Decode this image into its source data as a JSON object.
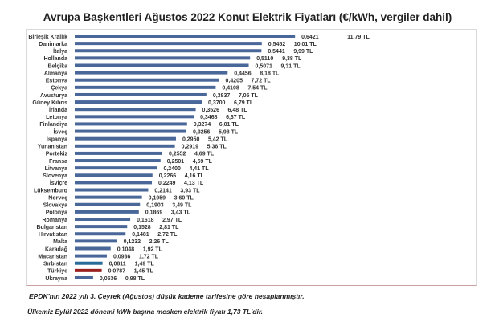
{
  "chart_data": {
    "type": "bar",
    "orientation": "horizontal",
    "title": "Avrupa Başkentleri Ağustos 2022 Konut Elektrik Fiyatları (€/kWh, vergiler dahil)",
    "categories": [
      "Birleşik Krallık",
      "Danimarka",
      "İtalya",
      "Hollanda",
      "Belçika",
      "Almanya",
      "Estonya",
      "Çekya",
      "Avusturya",
      "Güney Kıbrıs",
      "İrlanda",
      "Letonya",
      "Finlandiya",
      "İsveç",
      "İspanya",
      "Yunanistan",
      "Portekiz",
      "Fransa",
      "Litvanya",
      "Slovenya",
      "İsviçre",
      "Lüksemburg",
      "Norveç",
      "Slovakya",
      "Polonya",
      "Romanya",
      "Bulgaristan",
      "Hırvatistan",
      "Malta",
      "Karadağ",
      "Macaristan",
      "Sırbistan",
      "Türkiye",
      "Ukrayna"
    ],
    "values": [
      0.6421,
      0.5452,
      0.5441,
      0.511,
      0.5071,
      0.4456,
      0.4205,
      0.4108,
      0.3837,
      0.37,
      0.3526,
      0.3468,
      0.3274,
      0.3256,
      0.295,
      0.2919,
      0.2552,
      0.2501,
      0.24,
      0.2266,
      0.2249,
      0.2141,
      0.1959,
      0.1903,
      0.1869,
      0.1618,
      0.1528,
      0.1481,
      0.1232,
      0.1048,
      0.0936,
      0.0811,
      0.0787,
      0.0536
    ],
    "value_labels": [
      "0,6421",
      "0,5452",
      "0,5441",
      "0,5110",
      "0,5071",
      "0,4456",
      "0,4205",
      "0,4108",
      "0,3837",
      "0,3700",
      "0,3526",
      "0,3468",
      "0,3274",
      "0,3256",
      "0,2950",
      "0,2919",
      "0,2552",
      "0,2501",
      "0,2400",
      "0,2266",
      "0,2249",
      "0,2141",
      "0,1959",
      "0,1903",
      "0,1869",
      "0,1618",
      "0,1528",
      "0,1481",
      "0,1232",
      "0,1048",
      "0,0936",
      "0,0811",
      "0,0787",
      "0,0536"
    ],
    "tl_labels": [
      "11,79 TL",
      "10,01 TL",
      "9,99 TL",
      "9,38 TL",
      "9,31 TL",
      "8,18 TL",
      "7,72 TL",
      "7,54 TL",
      "7,05 TL",
      "6,79 TL",
      "6,48 TL",
      "6,37 TL",
      "6,01 TL",
      "5,98 TL",
      "5,42 TL",
      "5,36 TL",
      "4,69 TL",
      "4,59 TL",
      "4,41 TL",
      "4,16 TL",
      "4,13 TL",
      "3,93 TL",
      "3,60 TL",
      "3,49 TL",
      "3,43 TL",
      "2,97 TL",
      "2,81 TL",
      "2,72 TL",
      "2,26 TL",
      "1,92 TL",
      "1,72 TL",
      "1,49 TL",
      "1,45 TL",
      "0,98 TL"
    ],
    "colors": {
      "default": "#4a6799",
      "Sırbistan": "#2a6c99",
      "Türkiye": "#9a1f1f"
    },
    "grid": false
  },
  "notes": [
    "EPDK'nın 2022 yılı 3. Çeyrek (Ağustos) düşük kademe tarifesine göre hesaplanmıştır.",
    "Ülkemiz Eylül 2022 dönemi kWh başına mesken elektrik fiyatı 1,73 TL'dir."
  ]
}
